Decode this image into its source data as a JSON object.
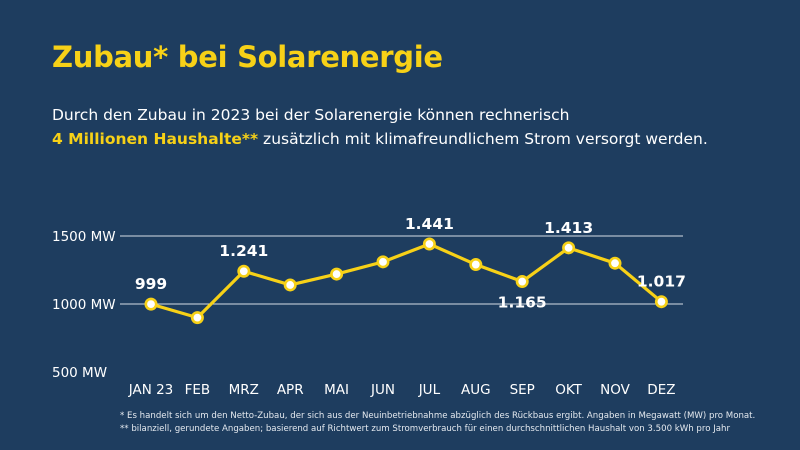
{
  "title": "Zubau* bei Solarenergie",
  "subtitle": {
    "line1": "Durch den Zubau in 2023 bei der Solarenergie können rechnerisch",
    "highlight": "4 Millionen Haushalte**",
    "line2_rest": " zusätzlich mit klimafreundlichem Strom versorgt werden."
  },
  "chart_data": {
    "type": "line",
    "categories": [
      "JAN 23",
      "FEB",
      "MRZ",
      "APR",
      "MAI",
      "JUN",
      "JUL",
      "AUG",
      "SEP",
      "OKT",
      "NOV",
      "DEZ"
    ],
    "values": [
      999,
      900,
      1241,
      1140,
      1220,
      1310,
      1441,
      1290,
      1165,
      1413,
      1300,
      1017
    ],
    "data_labels": [
      "999",
      "",
      "1.241",
      "",
      "",
      "",
      "1.441",
      "",
      "1.165",
      "1.413",
      "",
      "1.017"
    ],
    "label_position": [
      "above",
      "",
      "above",
      "",
      "",
      "",
      "above",
      "",
      "below",
      "above",
      "",
      "above"
    ],
    "y_ticks": [
      500,
      1000,
      1500
    ],
    "y_tick_labels": [
      "500 MW",
      "1000 MW",
      "1500 MW"
    ],
    "ylim": [
      500,
      1500
    ],
    "unit": "MW",
    "line_color": "#f7d117",
    "marker_fill": "#ffffff",
    "grid_color": "#d6dde6"
  },
  "footnotes": [
    "* Es handelt sich um den Netto-Zubau, der sich aus der Neuinbetriebnahme abzüglich des Rückbaus ergibt. Angaben in Megawatt (MW) pro Monat.",
    "** bilanziell, gerundete Angaben; basierend auf Richtwert zum Stromverbrauch für einen durchschnittlichen Haushalt von 3.500 kWh pro Jahr"
  ]
}
